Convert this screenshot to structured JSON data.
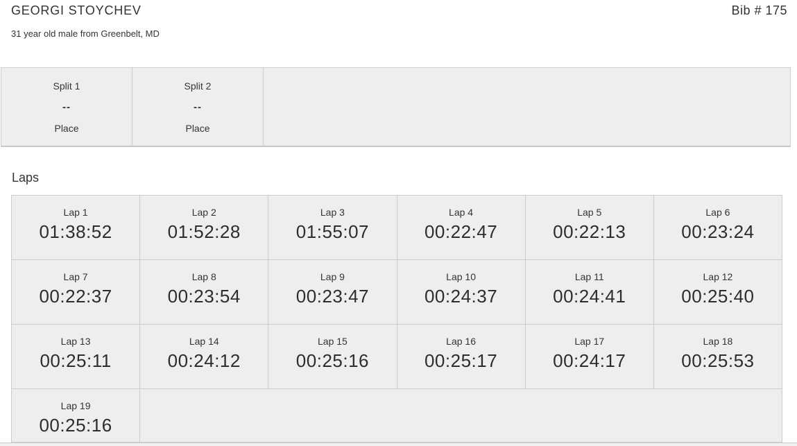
{
  "colors": {
    "cell_bg": "#eeeeee",
    "border": "#cccccc",
    "text": "#333333",
    "time_text": "#2d2d2d",
    "footer_bg": "#f0f0f0"
  },
  "header": {
    "name": "GEORGI STOYCHEV",
    "bib": "Bib # 175",
    "subtitle": "31 year old male from Greenbelt, MD"
  },
  "splits": [
    {
      "label": "Split 1",
      "value": "--",
      "sublabel": "Place"
    },
    {
      "label": "Split 2",
      "value": "--",
      "sublabel": "Place"
    }
  ],
  "laps": {
    "heading": "Laps",
    "columns": 6,
    "items": [
      {
        "label": "Lap 1",
        "time": "01:38:52"
      },
      {
        "label": "Lap 2",
        "time": "01:52:28"
      },
      {
        "label": "Lap 3",
        "time": "01:55:07"
      },
      {
        "label": "Lap 4",
        "time": "00:22:47"
      },
      {
        "label": "Lap 5",
        "time": "00:22:13"
      },
      {
        "label": "Lap 6",
        "time": "00:23:24"
      },
      {
        "label": "Lap 7",
        "time": "00:22:37"
      },
      {
        "label": "Lap 8",
        "time": "00:23:54"
      },
      {
        "label": "Lap 9",
        "time": "00:23:47"
      },
      {
        "label": "Lap 10",
        "time": "00:24:37"
      },
      {
        "label": "Lap 11",
        "time": "00:24:41"
      },
      {
        "label": "Lap 12",
        "time": "00:25:40"
      },
      {
        "label": "Lap 13",
        "time": "00:25:11"
      },
      {
        "label": "Lap 14",
        "time": "00:24:12"
      },
      {
        "label": "Lap 15",
        "time": "00:25:16"
      },
      {
        "label": "Lap 16",
        "time": "00:25:17"
      },
      {
        "label": "Lap 17",
        "time": "00:24:17"
      },
      {
        "label": "Lap 18",
        "time": "00:25:53"
      },
      {
        "label": "Lap 19",
        "time": "00:25:16"
      }
    ]
  }
}
